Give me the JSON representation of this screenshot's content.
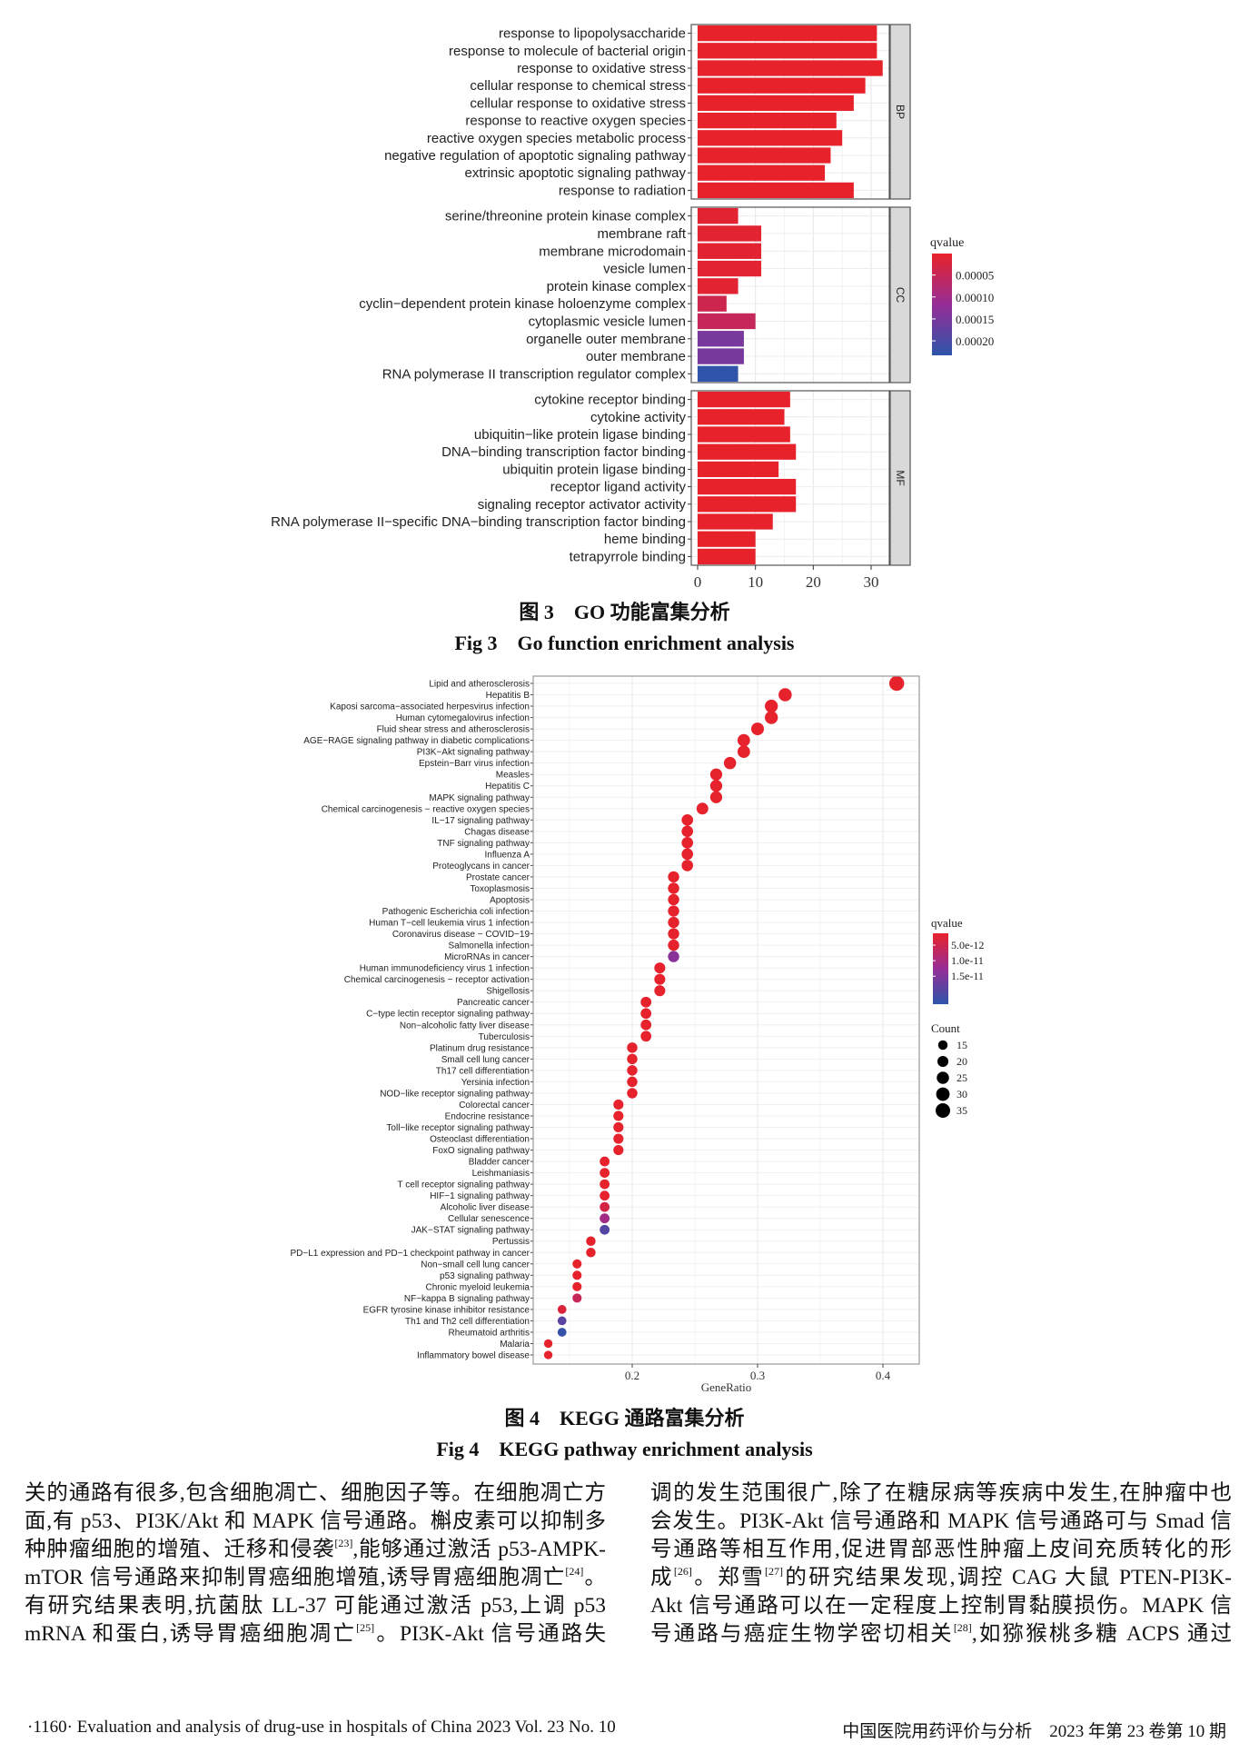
{
  "chart_data": [
    {
      "type": "bar",
      "orientation": "horizontal",
      "title": "",
      "xlabel": "",
      "ylabel": "",
      "xlim": [
        0,
        34
      ],
      "xticks": [
        "0",
        "10",
        "20",
        "30"
      ],
      "xtick_values": [
        0,
        10,
        20,
        30
      ],
      "grid": true,
      "legend": {
        "title": "qvalue",
        "position": "right",
        "labels": [
          "0.00005",
          "0.00010",
          "0.00015",
          "0.00020"
        ],
        "label_values": [
          5e-05,
          0.0001,
          0.00015,
          0.0002
        ],
        "range": [
          1e-06,
          0.000233
        ]
      },
      "facets": [
        {
          "name": "BP",
          "categories": [
            "response to lipopolysaccharide",
            "response to molecule of bacterial origin",
            "response to oxidative stress",
            "cellular response to chemical stress",
            "cellular response to oxidative stress",
            "response to reactive oxygen species",
            "reactive oxygen species metabolic process",
            "negative regulation of apoptotic signaling pathway",
            "extrinsic apoptotic signaling pathway",
            "response to radiation"
          ],
          "values": [
            31,
            31,
            32,
            29,
            27,
            24,
            25,
            23,
            22,
            27
          ],
          "qvalues": [
            2e-06,
            2e-06,
            2e-06,
            2e-06,
            2e-06,
            2e-06,
            2e-06,
            2e-06,
            2e-06,
            2e-06
          ]
        },
        {
          "name": "CC",
          "categories": [
            "serine/threonine protein kinase complex",
            "membrane raft",
            "membrane microdomain",
            "vesicle lumen",
            "protein kinase complex",
            "cyclin−dependent protein kinase holoenzyme complex",
            "cytoplasmic vesicle lumen",
            "organelle outer membrane",
            "outer membrane",
            "RNA polymerase II transcription regulator complex"
          ],
          "values": [
            7,
            11,
            11,
            11,
            7,
            5,
            10,
            8,
            8,
            7
          ],
          "qvalues": [
            1e-05,
            1e-05,
            1e-05,
            1e-05,
            1e-05,
            4e-05,
            5e-05,
            0.00015,
            0.00015,
            0.00023
          ]
        },
        {
          "name": "MF",
          "categories": [
            "cytokine receptor binding",
            "cytokine activity",
            "ubiquitin−like protein ligase binding",
            "DNA−binding transcription factor binding",
            "ubiquitin protein ligase binding",
            "receptor ligand activity",
            "signaling receptor activator activity",
            "RNA polymerase II−specific DNA−binding transcription factor binding",
            "heme binding",
            "tetrapyrrole binding"
          ],
          "values": [
            16,
            15,
            16,
            17,
            14,
            17,
            17,
            13,
            10,
            10
          ],
          "qvalues": [
            2e-06,
            2e-06,
            2e-06,
            2e-06,
            2e-06,
            2e-06,
            2e-06,
            2e-06,
            2e-06,
            2e-06
          ]
        }
      ]
    },
    {
      "type": "scatter",
      "title": "",
      "xlabel": "GeneRatio",
      "ylabel": "",
      "xlim": [
        0.121,
        0.429
      ],
      "xticks": [
        "0.2",
        "0.3",
        "0.4"
      ],
      "xtick_values": [
        0.2,
        0.3,
        0.4
      ],
      "grid": true,
      "legend": {
        "position": "right",
        "color": {
          "title": "qvalue",
          "labels": [
            "5.0e-12",
            "1.0e-11",
            "1.5e-11"
          ],
          "label_values": [
            5e-12,
            1e-11,
            1.5e-11
          ],
          "range": [
            1.2e-12,
            2.4e-11
          ]
        },
        "size": {
          "title": "Count",
          "labels": [
            "15",
            "20",
            "25",
            "30",
            "35"
          ],
          "values": [
            15,
            20,
            25,
            30,
            35
          ]
        }
      },
      "points": [
        {
          "term": "Lipid and atherosclerosis",
          "ratio": 0.411,
          "count": 37,
          "qvalue": 1.5e-12
        },
        {
          "term": "Hepatitis B",
          "ratio": 0.322,
          "count": 29,
          "qvalue": 1.5e-12
        },
        {
          "term": "Kaposi sarcoma−associated herpesvirus infection",
          "ratio": 0.311,
          "count": 28,
          "qvalue": 1.5e-12
        },
        {
          "term": "Human cytomegalovirus infection",
          "ratio": 0.311,
          "count": 28,
          "qvalue": 1.5e-12
        },
        {
          "term": "Fluid shear stress and atherosclerosis",
          "ratio": 0.3,
          "count": 27,
          "qvalue": 1.5e-12
        },
        {
          "term": "AGE−RAGE signaling pathway in diabetic complications",
          "ratio": 0.289,
          "count": 26,
          "qvalue": 1.5e-12
        },
        {
          "term": "PI3K−Akt signaling pathway",
          "ratio": 0.289,
          "count": 26,
          "qvalue": 1.5e-12
        },
        {
          "term": "Epstein−Barr virus infection",
          "ratio": 0.278,
          "count": 25,
          "qvalue": 1.5e-12
        },
        {
          "term": "Measles",
          "ratio": 0.267,
          "count": 24,
          "qvalue": 1.5e-12
        },
        {
          "term": "Hepatitis C",
          "ratio": 0.267,
          "count": 24,
          "qvalue": 1.5e-12
        },
        {
          "term": "MAPK signaling pathway",
          "ratio": 0.267,
          "count": 24,
          "qvalue": 1.5e-12
        },
        {
          "term": "Chemical carcinogenesis − reactive oxygen species",
          "ratio": 0.256,
          "count": 23,
          "qvalue": 1.5e-12
        },
        {
          "term": "IL−17 signaling pathway",
          "ratio": 0.244,
          "count": 22,
          "qvalue": 1.5e-12
        },
        {
          "term": "Chagas disease",
          "ratio": 0.244,
          "count": 22,
          "qvalue": 1.5e-12
        },
        {
          "term": "TNF signaling pathway",
          "ratio": 0.244,
          "count": 22,
          "qvalue": 1.5e-12
        },
        {
          "term": "Influenza A",
          "ratio": 0.244,
          "count": 22,
          "qvalue": 1.5e-12
        },
        {
          "term": "Proteoglycans in cancer",
          "ratio": 0.244,
          "count": 22,
          "qvalue": 1.5e-12
        },
        {
          "term": "Prostate cancer",
          "ratio": 0.233,
          "count": 21,
          "qvalue": 1.5e-12
        },
        {
          "term": "Toxoplasmosis",
          "ratio": 0.233,
          "count": 21,
          "qvalue": 1.5e-12
        },
        {
          "term": "Apoptosis",
          "ratio": 0.233,
          "count": 21,
          "qvalue": 1.5e-12
        },
        {
          "term": "Pathogenic Escherichia coli infection",
          "ratio": 0.233,
          "count": 21,
          "qvalue": 1.5e-12
        },
        {
          "term": "Human T−cell leukemia virus 1 infection",
          "ratio": 0.233,
          "count": 21,
          "qvalue": 1.5e-12
        },
        {
          "term": "Coronavirus disease − COVID−19",
          "ratio": 0.233,
          "count": 21,
          "qvalue": 1.5e-12
        },
        {
          "term": "Salmonella infection",
          "ratio": 0.233,
          "count": 21,
          "qvalue": 1.5e-12
        },
        {
          "term": "MicroRNAs in cancer",
          "ratio": 0.233,
          "count": 21,
          "qvalue": 1.4e-11
        },
        {
          "term": "Human immunodeficiency virus 1 infection",
          "ratio": 0.222,
          "count": 20,
          "qvalue": 1.5e-12
        },
        {
          "term": "Chemical carcinogenesis − receptor activation",
          "ratio": 0.222,
          "count": 20,
          "qvalue": 1.5e-12
        },
        {
          "term": "Shigellosis",
          "ratio": 0.222,
          "count": 20,
          "qvalue": 1.5e-12
        },
        {
          "term": "Pancreatic cancer",
          "ratio": 0.211,
          "count": 19,
          "qvalue": 1.5e-12
        },
        {
          "term": "C−type lectin receptor signaling pathway",
          "ratio": 0.211,
          "count": 19,
          "qvalue": 1.5e-12
        },
        {
          "term": "Non−alcoholic fatty liver disease",
          "ratio": 0.211,
          "count": 19,
          "qvalue": 1.5e-12
        },
        {
          "term": "Tuberculosis",
          "ratio": 0.211,
          "count": 19,
          "qvalue": 1.5e-12
        },
        {
          "term": "Platinum drug resistance",
          "ratio": 0.2,
          "count": 18,
          "qvalue": 1.5e-12
        },
        {
          "term": "Small cell lung cancer",
          "ratio": 0.2,
          "count": 18,
          "qvalue": 1.5e-12
        },
        {
          "term": "Th17 cell differentiation",
          "ratio": 0.2,
          "count": 18,
          "qvalue": 1.5e-12
        },
        {
          "term": "Yersinia infection",
          "ratio": 0.2,
          "count": 18,
          "qvalue": 1.5e-12
        },
        {
          "term": "NOD−like receptor signaling pathway",
          "ratio": 0.2,
          "count": 18,
          "qvalue": 1.5e-12
        },
        {
          "term": "Colorectal cancer",
          "ratio": 0.189,
          "count": 17,
          "qvalue": 1.5e-12
        },
        {
          "term": "Endocrine resistance",
          "ratio": 0.189,
          "count": 17,
          "qvalue": 1.5e-12
        },
        {
          "term": "Toll−like receptor signaling pathway",
          "ratio": 0.189,
          "count": 17,
          "qvalue": 1.5e-12
        },
        {
          "term": "Osteoclast differentiation",
          "ratio": 0.189,
          "count": 17,
          "qvalue": 1.5e-12
        },
        {
          "term": "FoxO signaling pathway",
          "ratio": 0.189,
          "count": 17,
          "qvalue": 1.5e-12
        },
        {
          "term": "Bladder cancer",
          "ratio": 0.178,
          "count": 16,
          "qvalue": 1.5e-12
        },
        {
          "term": "Leishmaniasis",
          "ratio": 0.178,
          "count": 16,
          "qvalue": 1.5e-12
        },
        {
          "term": "T cell receptor signaling pathway",
          "ratio": 0.178,
          "count": 16,
          "qvalue": 1.5e-12
        },
        {
          "term": "HIF−1 signaling pathway",
          "ratio": 0.178,
          "count": 16,
          "qvalue": 1.5e-12
        },
        {
          "term": "Alcoholic liver disease",
          "ratio": 0.178,
          "count": 16,
          "qvalue": 4e-12
        },
        {
          "term": "Cellular senescence",
          "ratio": 0.178,
          "count": 16,
          "qvalue": 1.1e-11
        },
        {
          "term": "JAK−STAT signaling pathway",
          "ratio": 0.178,
          "count": 16,
          "qvalue": 2e-11
        },
        {
          "term": "Pertussis",
          "ratio": 0.167,
          "count": 15,
          "qvalue": 1.5e-12
        },
        {
          "term": "PD−L1 expression and PD−1 checkpoint pathway in cancer",
          "ratio": 0.167,
          "count": 15,
          "qvalue": 1.5e-12
        },
        {
          "term": "Non−small cell lung cancer",
          "ratio": 0.156,
          "count": 14,
          "qvalue": 1.5e-12
        },
        {
          "term": "p53 signaling pathway",
          "ratio": 0.156,
          "count": 14,
          "qvalue": 1.5e-12
        },
        {
          "term": "Chronic myeloid leukemia",
          "ratio": 0.156,
          "count": 14,
          "qvalue": 1.5e-12
        },
        {
          "term": "NF−kappa B signaling pathway",
          "ratio": 0.156,
          "count": 14,
          "qvalue": 6e-12
        },
        {
          "term": "EGFR tyrosine kinase inhibitor resistance",
          "ratio": 0.144,
          "count": 13,
          "qvalue": 3e-12
        },
        {
          "term": "Th1 and Th2 cell differentiation",
          "ratio": 0.144,
          "count": 13,
          "qvalue": 1.9e-11
        },
        {
          "term": "Rheumatoid arthritis",
          "ratio": 0.144,
          "count": 13,
          "qvalue": 2.3e-11
        },
        {
          "term": "Malaria",
          "ratio": 0.133,
          "count": 12,
          "qvalue": 1.5e-12
        },
        {
          "term": "Inflammatory bowel disease",
          "ratio": 0.133,
          "count": 12,
          "qvalue": 1.5e-12
        }
      ]
    }
  ],
  "colors": {
    "low": "#e8222a",
    "mid": "#962d96",
    "high": "#2d55aa"
  },
  "captions": {
    "fig3_cn": "图 3　GO 功能富集分析",
    "fig3_en": "Fig 3　Go function enrichment analysis",
    "fig4_cn": "图 4　KEGG 通路富集分析",
    "fig4_en": "Fig 4　KEGG pathway enrichment analysis"
  },
  "body": {
    "left": [
      [
        {
          "t": "关的通路有很多,包含细胞凋亡、细胞因子等。在细胞凋亡方"
        }
      ],
      [
        {
          "t": "面,有 p53、PI3K/Akt 和 MAPK 信号通路。槲皮素可以抑制多"
        }
      ],
      [
        {
          "t": "种肿瘤细胞的增殖、迁移和侵袭"
        },
        {
          "sup": "[23]"
        },
        {
          "t": ",能够通过激活 p53-AMPK-"
        }
      ],
      [
        {
          "t": "mTOR 信号通路来抑制胃癌细胞增殖,诱导胃癌细胞凋亡"
        },
        {
          "sup": "[24]"
        },
        {
          "t": "。"
        }
      ],
      [
        {
          "t": "有研究结果表明,抗菌肽 LL-37 可能通过激活 p53,上调 p53"
        }
      ],
      [
        {
          "t": "mRNA 和蛋白,诱导胃癌细胞凋亡"
        },
        {
          "sup": "[25]"
        },
        {
          "t": "。PI3K-Akt 信号通路失"
        }
      ]
    ],
    "right": [
      [
        {
          "t": "调的发生范围很广,除了在糖尿病等疾病中发生,在肿瘤中也"
        }
      ],
      [
        {
          "t": "会发生。PI3K-Akt 信号通路和 MAPK 信号通路可与 Smad 信"
        }
      ],
      [
        {
          "t": "号通路等相互作用,促进胃部恶性肿瘤上皮间充质转化的形"
        }
      ],
      [
        {
          "t": "成"
        },
        {
          "sup": "[26]"
        },
        {
          "t": "。郑雪"
        },
        {
          "sup": "[27]"
        },
        {
          "t": "的研究结果发现,调控 CAG 大鼠 PTEN-PI3K-"
        }
      ],
      [
        {
          "t": "Akt 信号通路可以在一定程度上控制胃黏膜损伤。MAPK 信"
        }
      ],
      [
        {
          "t": "号通路与癌症生物学密切相关"
        },
        {
          "sup": "[28]"
        },
        {
          "t": ",如猕猴桃多糖 ACPS 通过"
        }
      ]
    ]
  },
  "footer": {
    "left": "·1160· Evaluation and analysis of drug-use in hospitals of China 2023 Vol. 23 No. 10",
    "right": "中国医院用药评价与分析　2023 年第 23 卷第 10 期"
  }
}
